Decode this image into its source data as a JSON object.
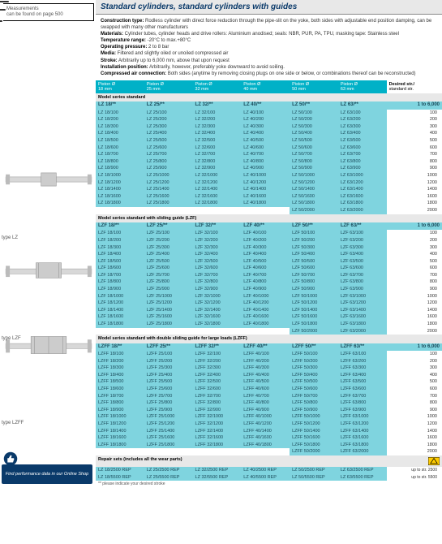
{
  "left": {
    "meas1": "Measurements",
    "meas2": "can be found on page 500",
    "lbl_lz": "type LZ",
    "lbl_lzf": "type LZF",
    "lbl_lzff": "type LZFF",
    "tip": "Find performance data in our Online Shop"
  },
  "title": "Standard cylinders, standard cylinders with guides",
  "spec": {
    "ctype_k": "Construction type:",
    "ctype_v": " Rodless cylinder with direct force reduction through the pipe-slit on the yoke, both sides with adjustable end position damping, can be swapped with many other manufacturers",
    "mat_k": "Materials:",
    "mat_v": " Cylinder tubes, cylinder heads and drive rollers: Aluminium anodised; seals: NBR, PUR, PA, TPU, masking tape: Stainless steel",
    "temp_k": "Temperature range:",
    "temp_v": " -20°C to max.+80°C",
    "op_k": "Operating pressure:",
    "op_v": " 2 to 8 bar",
    "media_k": "Media:",
    "media_v": " Filtered and slightly oiled or unoiled compressed air",
    "stroke_k": "Stroke:",
    "stroke_v": " Arbitrarily up to 6,000 mm, above that upon request",
    "inst_k": "Installation position:",
    "inst_v": " Arbitrarily, however, preferably yoke downward to avoid soiling.",
    "air_k": "Compressed air connection:",
    "air_v": " Both sides (anytime by removing closing plugs on one side or below, or combinations thereof can be reconstructed)"
  },
  "hdr": {
    "p": "Piston Ø",
    "d18": "18 mm",
    "d25": "25 mm",
    "d32": "32 mm",
    "d40": "40 mm",
    "d50": "50 mm",
    "d63": "63 mm",
    "des": "Desired str./",
    "des2": "standard str."
  },
  "sections": [
    {
      "title": "Model series standard",
      "pfx": [
        "LZ 18/**",
        "LZ 25/**",
        "LZ 32/**",
        "LZ 40/**",
        "LZ 50/**",
        "LZ 63/**"
      ],
      "range": "1 to 6,000",
      "p": [
        "LZ 18",
        "LZ 25",
        "LZ 32",
        "LZ 40",
        "LZ 50",
        "LZ 63"
      ],
      "strokes": [
        100,
        200,
        300,
        400,
        500,
        600,
        700,
        800,
        900,
        1000,
        1200,
        1400,
        1600,
        1800,
        2000
      ],
      "stroke_full_cols": 14
    },
    {
      "title": "Model series standard with sliding guide (LZF)",
      "pfx": [
        "LZF 18/**",
        "LZF 25/**",
        "LZF 32/**",
        "LZF 40/**",
        "LZF 50/**",
        "LZF 63/**"
      ],
      "range": "1 to 6,000",
      "p": [
        "LZF 18",
        "LZF 25",
        "LZF 32",
        "LZF 40",
        "LZF 50",
        "LZF 63"
      ],
      "strokes": [
        100,
        200,
        300,
        400,
        500,
        600,
        700,
        800,
        900,
        1000,
        1200,
        1400,
        1600,
        1800,
        2000
      ],
      "stroke_full_cols": 14
    },
    {
      "title": "Model series standard with double sliding guide for large loads (LZFF)",
      "pfx": [
        "LZFF 18/**",
        "LZFF 25/**",
        "LZFF 32/**",
        "LZFF 40/**",
        "LZFF 50/**",
        "LZFF 63/**"
      ],
      "range": "1 to 6,000",
      "p": [
        "LZFF 18",
        "LZFF 25",
        "LZFF 32",
        "LZFF 40",
        "LZFF 50",
        "LZFF 63"
      ],
      "strokes": [
        100,
        200,
        300,
        400,
        500,
        600,
        700,
        800,
        900,
        1000,
        1200,
        1400,
        1600,
        1800,
        2000
      ],
      "stroke_full_cols": 14
    }
  ],
  "repair": {
    "title": "Repair sets (includes all the wear parts)",
    "rows": [
      [
        "LZ 18/2500 REP",
        "LZ 25/2500 REP",
        "LZ 32/2500 REP",
        "LZ 40/2500 REP",
        "LZ 50/2500 REP",
        "LZ 63/2500 REP",
        "up to str. 2500"
      ],
      [
        "LZ 18/5500 REP",
        "LZ 25/5500 REP",
        "LZ 32/5500 REP",
        "LZ 40/5500 REP",
        "LZ 50/5500 REP",
        "LZ 63/5500 REP",
        "up to str. 5500"
      ]
    ]
  },
  "foot": "** please indicate your desired stroke",
  "colors": {
    "header_bg": "#00b1c7",
    "cell_bg": "#7fd4df",
    "title_bar": "#e8e8e8",
    "title_fg": "#0a3a6a",
    "tip_bg": "#0a3a6a"
  }
}
